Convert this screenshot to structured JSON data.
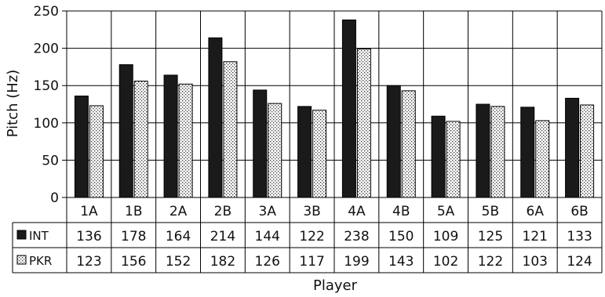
{
  "chart_data": {
    "type": "bar",
    "xlabel": "Player",
    "ylabel": "Pitch (Hz)",
    "ylim": [
      0,
      250
    ],
    "yticks": [
      0,
      50,
      100,
      150,
      200,
      250
    ],
    "grid": "horizontal",
    "legend_placement": "data-table-left",
    "categories": [
      "1A",
      "1B",
      "2A",
      "2B",
      "3A",
      "3B",
      "4A",
      "4B",
      "5A",
      "5B",
      "6A",
      "6B"
    ],
    "series": [
      {
        "name": "INT",
        "fill": "solid-black",
        "color": "#1a1a1a",
        "values": [
          136,
          178,
          164,
          214,
          144,
          122,
          238,
          150,
          109,
          125,
          121,
          133
        ]
      },
      {
        "name": "PKR",
        "fill": "dotted-pattern",
        "color": "#ffffff",
        "values": [
          123,
          156,
          152,
          182,
          126,
          117,
          199,
          143,
          102,
          122,
          103,
          124
        ]
      }
    ]
  }
}
